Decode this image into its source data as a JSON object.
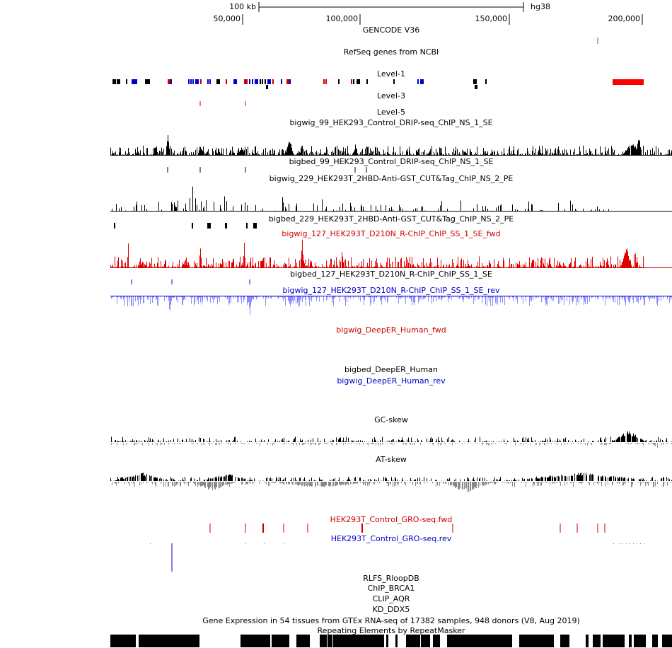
{
  "ruler": {
    "scale_label": "100 kb",
    "assembly": "hg38",
    "positions": [
      "50,000",
      "100,000",
      "150,000",
      "200,000"
    ]
  },
  "tracks": [
    {
      "label": "GENCODE V36",
      "color": "#000000"
    },
    {
      "label": "RefSeq genes from NCBI",
      "color": "#000000"
    },
    {
      "label": "Level-1",
      "color": "#000000"
    },
    {
      "label": "Level-3",
      "color": "#000000"
    },
    {
      "label": "Level-5",
      "color": "#000000"
    },
    {
      "label": "bigwig_99_HEK293_Control_DRIP-seq_ChIP_NS_1_SE",
      "color": "#000000"
    },
    {
      "label": "bigbed_99_HEK293_Control_DRIP-seq_ChIP_NS_1_SE",
      "color": "#000000"
    },
    {
      "label": "bigwig_229_HEK293T_2HBD-Anti-GST_CUT&Tag_ChIP_NS_2_PE",
      "color": "#000000"
    },
    {
      "label": "bigbed_229_HEK293T_2HBD-Anti-GST_CUT&Tag_ChIP_NS_2_PE",
      "color": "#000000"
    },
    {
      "label": "bigwig_127_HEK293T_D210N_R-ChIP_ChIP_SS_1_SE_fwd",
      "color": "#cc0000"
    },
    {
      "label": "bigbed_127_HEK293T_D210N_R-ChIP_ChIP_SS_1_SE",
      "color": "#000000"
    },
    {
      "label": "bigwig_127_HEK293T_D210N_R-ChIP_ChIP_SS_1_SE_rev",
      "color": "#0000cc"
    },
    {
      "label": "bigwig_DeepER_Human_fwd",
      "color": "#cc0000"
    },
    {
      "label": "bigbed_DeepER_Human",
      "color": "#000000"
    },
    {
      "label": "bigwig_DeepER_Human_rev",
      "color": "#0000cc"
    },
    {
      "label": "GC-skew",
      "color": "#000000"
    },
    {
      "label": "AT-skew",
      "color": "#000000"
    },
    {
      "label": "HEK293T_Control_GRO-seq.fwd",
      "color": "#cc0000"
    },
    {
      "label": "HEK293T_Control_GRO-seq.rev",
      "color": "#0000cc"
    },
    {
      "label": "RLFS_RloopDB",
      "color": "#000000"
    },
    {
      "label": "ChIP_BRCA1",
      "color": "#000000"
    },
    {
      "label": "CLIP_AQR",
      "color": "#000000"
    },
    {
      "label": "KD_DDX5",
      "color": "#000000"
    },
    {
      "label": "Gene Expression in 54 tissues from GTEx RNA-seq of 17382 samples, 948 donors (V8, Aug 2019)",
      "color": "#000000"
    },
    {
      "label": "Repeating Elements by RepeatMasker",
      "color": "#000000"
    }
  ]
}
